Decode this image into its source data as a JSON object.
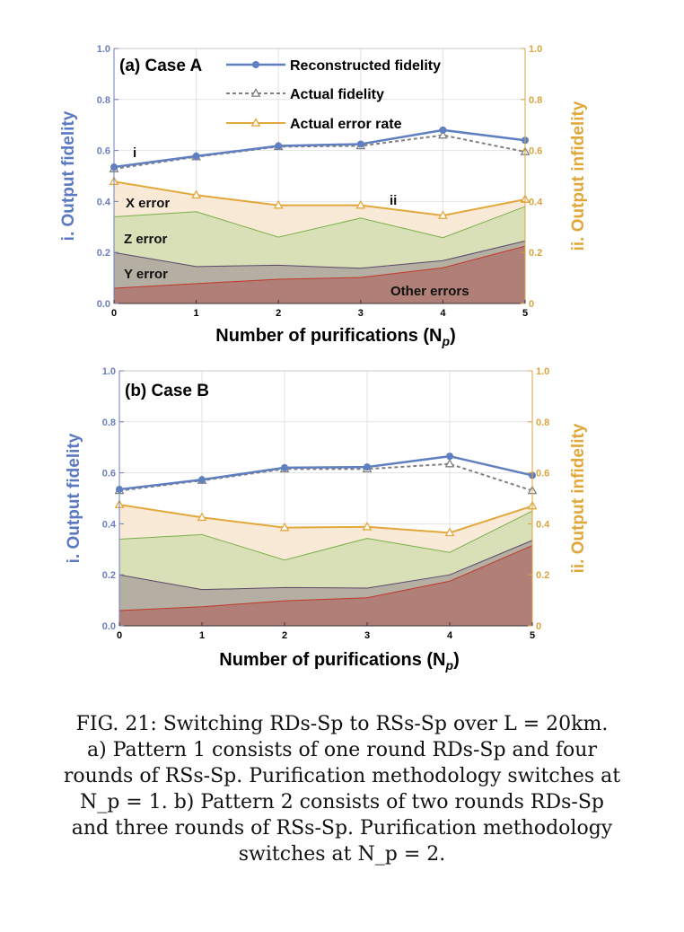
{
  "legend": {
    "reconstructed": "Reconstructed fidelity",
    "actual": "Actual fidelity",
    "error_rate": "Actual error rate"
  },
  "chart_data": [
    {
      "type": "line",
      "panel_title": "(a) Case A",
      "xlabel": "Number of purifications (N",
      "xlabel_sub": "p",
      "xlabel_close": ")",
      "ylabel_left": "i. Output fidelity",
      "ylabel_right": "ii. Output infidelity",
      "xlim": [
        0,
        5
      ],
      "ylim": [
        0,
        1
      ],
      "x": [
        0,
        1,
        2,
        3,
        4,
        5
      ],
      "x_ticks": [
        "0",
        "1",
        "2",
        "3",
        "4",
        "5"
      ],
      "y_ticks": [
        "0.0",
        "0.2",
        "0.4",
        "0.6",
        "0.8",
        "1.0"
      ],
      "y_ticks_right": [
        "0",
        "0.2",
        "0.4",
        "0.6",
        "0.8",
        "1.0"
      ],
      "series": [
        {
          "name": "Reconstructed fidelity",
          "values": [
            0.535,
            0.578,
            0.618,
            0.625,
            0.68,
            0.64
          ]
        },
        {
          "name": "Actual fidelity",
          "values": [
            0.528,
            0.575,
            0.615,
            0.618,
            0.66,
            0.595
          ]
        },
        {
          "name": "Actual error rate",
          "values": [
            0.478,
            0.425,
            0.385,
            0.385,
            0.345,
            0.408
          ]
        }
      ],
      "stacked_errors": {
        "other": [
          0.06,
          0.078,
          0.095,
          0.102,
          0.14,
          0.225
        ],
        "y_top": [
          0.2,
          0.145,
          0.15,
          0.138,
          0.168,
          0.245
        ],
        "z_top": [
          0.34,
          0.36,
          0.26,
          0.335,
          0.258,
          0.38
        ]
      },
      "region_labels": {
        "x": "X error",
        "z": "Z error",
        "y": "Y error",
        "other": "Other errors"
      },
      "markers": {
        "i": "i",
        "ii": "ii"
      },
      "show_region_labels": true
    },
    {
      "type": "line",
      "panel_title": "(b) Case B",
      "xlabel": "Number of purifications (N",
      "xlabel_sub": "p",
      "xlabel_close": ")",
      "ylabel_left": "i. Output fidelity",
      "ylabel_right": "ii. Output infidelity",
      "xlim": [
        0,
        5
      ],
      "ylim": [
        0,
        1
      ],
      "x": [
        0,
        1,
        2,
        3,
        4,
        5
      ],
      "x_ticks": [
        "0",
        "1",
        "2",
        "3",
        "4",
        "5"
      ],
      "y_ticks": [
        "0.0",
        "0.2",
        "0.4",
        "0.6",
        "0.8",
        "1.0"
      ],
      "y_ticks_right": [
        "0",
        "0.2",
        "0.4",
        "0.6",
        "0.8",
        "1.0"
      ],
      "series": [
        {
          "name": "Reconstructed fidelity",
          "values": [
            0.535,
            0.573,
            0.62,
            0.623,
            0.665,
            0.59
          ]
        },
        {
          "name": "Actual fidelity",
          "values": [
            0.53,
            0.57,
            0.615,
            0.615,
            0.635,
            0.53
          ]
        },
        {
          "name": "Actual error rate",
          "values": [
            0.475,
            0.425,
            0.385,
            0.388,
            0.365,
            0.47
          ]
        }
      ],
      "stacked_errors": {
        "other": [
          0.06,
          0.075,
          0.098,
          0.11,
          0.175,
          0.315
        ],
        "y_top": [
          0.2,
          0.142,
          0.15,
          0.148,
          0.2,
          0.335
        ],
        "z_top": [
          0.34,
          0.358,
          0.258,
          0.343,
          0.288,
          0.45
        ]
      },
      "show_region_labels": false
    }
  ],
  "colors": {
    "reconstructed": "#5f7fc0",
    "actual": "#808080",
    "error_rate": "#e3a83c",
    "x_fill": "#f8ead7",
    "z_fill": "#d9dfb7",
    "y_fill": "#b5aea2",
    "other_fill": "#b07f77",
    "left_axis": "#6b7fb8",
    "right_axis": "#d9a441"
  },
  "caption": {
    "line1": "FIG. 21: Switching RDs-Sp to RSs-Sp over L = 20km.",
    "line2": "a) Pattern 1 consists of one round RDs-Sp and four",
    "line3": "rounds of RSs-Sp. Purification methodology switches at",
    "line4": "N_p = 1.  b) Pattern 2 consists of two rounds RDs-Sp",
    "line5": "and three rounds of RSs-Sp. Purification methodology",
    "line6": "switches at N_p = 2."
  }
}
